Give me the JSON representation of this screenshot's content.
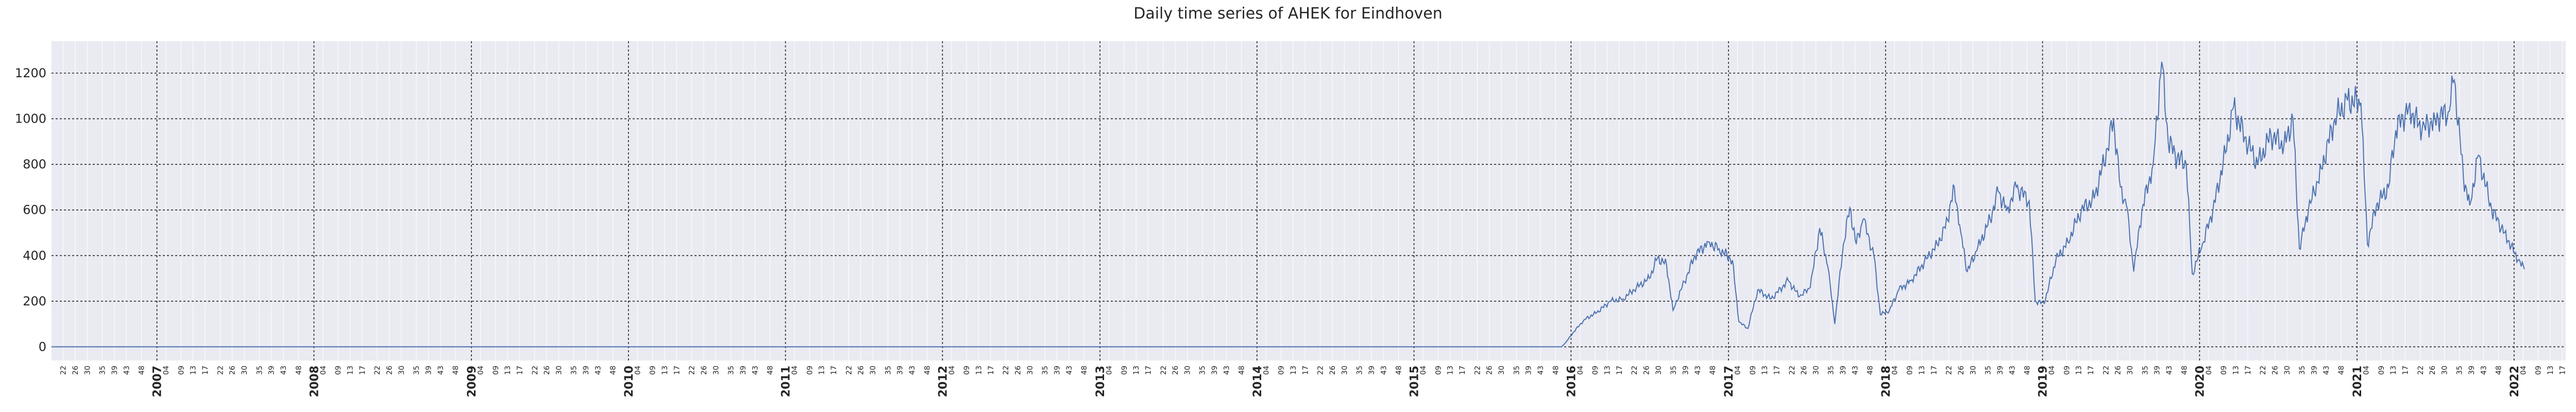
{
  "chart_data": {
    "type": "line",
    "title": "Daily time series of AHEK for Eindhoven",
    "xlabel": "",
    "ylabel": "",
    "xlim": [
      "2006-05-01",
      "2022-05-01"
    ],
    "ylim": [
      -60,
      1340
    ],
    "yticks": [
      0,
      200,
      400,
      600,
      800,
      1000,
      1200
    ],
    "year_ticks": [
      "2007",
      "2008",
      "2009",
      "2010",
      "2011",
      "2012",
      "2013",
      "2014",
      "2015",
      "2016",
      "2017",
      "2018",
      "2019",
      "2020",
      "2021",
      "2022"
    ],
    "week_ticks": [
      "04",
      "09",
      "13",
      "17",
      "22",
      "26",
      "30",
      "35",
      "39",
      "43",
      "48"
    ],
    "grid": true,
    "legend": "none",
    "series": [
      {
        "color": "#4c72b0",
        "points": [
          [
            "2006-05-01",
            0
          ],
          [
            "2015-12-10",
            0
          ],
          [
            "2015-12-20",
            20
          ],
          [
            "2016-01-05",
            60
          ],
          [
            "2016-02-01",
            120
          ],
          [
            "2016-03-01",
            150
          ],
          [
            "2016-04-01",
            200
          ],
          [
            "2016-05-01",
            210
          ],
          [
            "2016-06-01",
            260
          ],
          [
            "2016-07-01",
            300
          ],
          [
            "2016-07-20",
            390
          ],
          [
            "2016-08-10",
            360
          ],
          [
            "2016-08-25",
            160
          ],
          [
            "2016-09-15",
            260
          ],
          [
            "2016-10-15",
            400
          ],
          [
            "2016-11-15",
            460
          ],
          [
            "2016-12-10",
            430
          ],
          [
            "2017-01-10",
            380
          ],
          [
            "2017-01-25",
            110
          ],
          [
            "2017-02-15",
            80
          ],
          [
            "2017-03-10",
            250
          ],
          [
            "2017-04-10",
            210
          ],
          [
            "2017-05-20",
            290
          ],
          [
            "2017-06-15",
            220
          ],
          [
            "2017-07-10",
            260
          ],
          [
            "2017-08-01",
            520
          ],
          [
            "2017-08-20",
            350
          ],
          [
            "2017-09-05",
            100
          ],
          [
            "2017-09-25",
            450
          ],
          [
            "2017-10-10",
            610
          ],
          [
            "2017-10-25",
            450
          ],
          [
            "2017-11-10",
            560
          ],
          [
            "2017-12-05",
            400
          ],
          [
            "2017-12-20",
            140
          ],
          [
            "2018-01-10",
            160
          ],
          [
            "2018-02-01",
            250
          ],
          [
            "2018-03-01",
            290
          ],
          [
            "2018-04-01",
            370
          ],
          [
            "2018-05-01",
            450
          ],
          [
            "2018-05-20",
            520
          ],
          [
            "2018-06-10",
            700
          ],
          [
            "2018-06-25",
            500
          ],
          [
            "2018-07-10",
            330
          ],
          [
            "2018-08-01",
            420
          ],
          [
            "2018-09-01",
            560
          ],
          [
            "2018-09-20",
            680
          ],
          [
            "2018-10-10",
            600
          ],
          [
            "2018-11-01",
            700
          ],
          [
            "2018-12-01",
            640
          ],
          [
            "2018-12-15",
            200
          ],
          [
            "2019-01-05",
            190
          ],
          [
            "2019-02-01",
            380
          ],
          [
            "2019-03-01",
            460
          ],
          [
            "2019-04-01",
            600
          ],
          [
            "2019-05-01",
            650
          ],
          [
            "2019-06-01",
            870
          ],
          [
            "2019-06-15",
            1000
          ],
          [
            "2019-07-01",
            700
          ],
          [
            "2019-07-15",
            620
          ],
          [
            "2019-08-01",
            330
          ],
          [
            "2019-08-20",
            600
          ],
          [
            "2019-09-15",
            800
          ],
          [
            "2019-10-05",
            1250
          ],
          [
            "2019-10-20",
            900
          ],
          [
            "2019-11-10",
            830
          ],
          [
            "2019-12-01",
            800
          ],
          [
            "2019-12-15",
            320
          ],
          [
            "2020-01-05",
            430
          ],
          [
            "2020-02-01",
            600
          ],
          [
            "2020-03-01",
            850
          ],
          [
            "2020-03-20",
            1050
          ],
          [
            "2020-04-15",
            920
          ],
          [
            "2020-05-15",
            800
          ],
          [
            "2020-06-15",
            930
          ],
          [
            "2020-07-15",
            880
          ],
          [
            "2020-08-05",
            1000
          ],
          [
            "2020-08-20",
            430
          ],
          [
            "2020-09-10",
            600
          ],
          [
            "2020-10-10",
            780
          ],
          [
            "2020-11-10",
            1000
          ],
          [
            "2020-12-10",
            1080
          ],
          [
            "2021-01-10",
            1070
          ],
          [
            "2021-01-25",
            450
          ],
          [
            "2021-02-15",
            620
          ],
          [
            "2021-03-15",
            700
          ],
          [
            "2021-04-01",
            950
          ],
          [
            "2021-05-01",
            1050
          ],
          [
            "2021-06-01",
            950
          ],
          [
            "2021-07-01",
            1000
          ],
          [
            "2021-08-01",
            1030
          ],
          [
            "2021-08-15",
            1170
          ],
          [
            "2021-09-05",
            750
          ],
          [
            "2021-09-20",
            620
          ],
          [
            "2021-10-10",
            840
          ],
          [
            "2021-11-10",
            600
          ],
          [
            "2021-12-10",
            500
          ],
          [
            "2022-01-10",
            380
          ],
          [
            "2022-01-25",
            340
          ]
        ]
      }
    ]
  }
}
